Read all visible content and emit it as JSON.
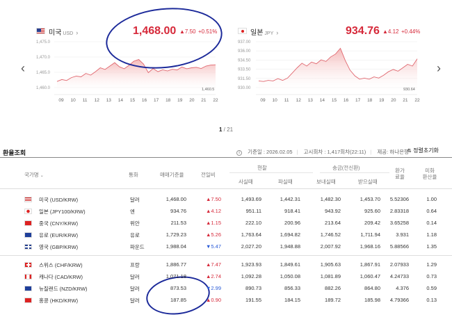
{
  "carousel": {
    "prev_icon": "chevron-left-icon",
    "next_icon": "chevron-right-icon",
    "page": "1",
    "total": "/ 21"
  },
  "usd": {
    "name": "미국",
    "code": "USD",
    "price": "1,468.00",
    "change": "▲7.50",
    "pct": "+0.51%",
    "y_ticks": [
      "1,475.0",
      "1,470.0",
      "1,465.0",
      "1,460.0"
    ],
    "last_label": "1,460.5",
    "x_ticks": [
      "09",
      "10",
      "11",
      "12",
      "13",
      "14",
      "15",
      "16",
      "17",
      "18",
      "19",
      "20",
      "21",
      "22"
    ],
    "chart_data": {
      "type": "area",
      "ylim": [
        1457,
        1478
      ],
      "values": [
        1461.2,
        1462.0,
        1461.6,
        1462.8,
        1463.4,
        1463.1,
        1464.5,
        1463.8,
        1465.2,
        1466.8,
        1466.1,
        1467.5,
        1468.9,
        1467.2,
        1466.4,
        1467.8,
        1469.5,
        1470.2,
        1468.3,
        1464.8,
        1466.5,
        1465.2,
        1466.0,
        1465.5,
        1466.2,
        1465.9,
        1467.1,
        1466.4,
        1466.8,
        1467.0,
        1466.5,
        1467.5,
        1467.9,
        1468.0
      ]
    }
  },
  "jpy": {
    "name": "일본",
    "code": "JPY",
    "price": "934.76",
    "change": "▲4.12",
    "pct": "+0.44%",
    "y_ticks": [
      "937.00",
      "936.00",
      "934.50",
      "933.50",
      "931.50",
      "930.00"
    ],
    "last_label": "930.64",
    "x_ticks": [
      "09",
      "10",
      "11",
      "12",
      "13",
      "14",
      "15",
      "16",
      "17",
      "18",
      "19",
      "20",
      "21",
      "22"
    ],
    "chart_data": {
      "type": "area",
      "ylim": [
        929,
        938
      ],
      "values": [
        930.9,
        930.8,
        931.0,
        930.9,
        931.3,
        931.0,
        931.4,
        932.3,
        933.2,
        934.0,
        933.5,
        934.2,
        933.9,
        934.6,
        934.3,
        935.1,
        935.6,
        936.6,
        934.5,
        932.8,
        931.8,
        931.2,
        931.4,
        931.2,
        931.6,
        931.4,
        931.9,
        932.5,
        932.9,
        932.6,
        933.2,
        933.8,
        933.5,
        934.76
      ]
    }
  },
  "table": {
    "title": "환율조회",
    "meta": {
      "date_label": "기준일 : 2026.02.05",
      "notice": "고시회차 : 1,417회차(22:11)",
      "provider": "제공: 하나은행"
    },
    "sort_label": "정렬초기화",
    "headers": {
      "country": "국가명",
      "unit": "통화",
      "base": "매매기준율",
      "change": "전일비",
      "cash": "현찰",
      "cash_buy": "사실때",
      "cash_sell": "파실때",
      "wire": "송금(전신환)",
      "wire_send": "보내실때",
      "wire_recv": "받으실때",
      "exchange": "환가\n료율",
      "usd_rate": "미화\n환산율"
    },
    "rows_top": [
      {
        "name": "미국 (USD/KRW)",
        "unit": "달러",
        "base": "1,468.00",
        "change": "▲7.50",
        "dir": "up",
        "cash_buy": "1,493.69",
        "cash_sell": "1,442.31",
        "send": "1,482.30",
        "recv": "1,453.70",
        "ex": "5.52306",
        "usd": "1.00",
        "flag": "us"
      },
      {
        "name": "일본 (JPY100/KRW)",
        "unit": "엔",
        "base": "934.76",
        "change": "▲4.12",
        "dir": "up",
        "cash_buy": "951.11",
        "cash_sell": "918.41",
        "send": "943.92",
        "recv": "925.60",
        "ex": "2.83318",
        "usd": "0.64",
        "flag": "jp"
      },
      {
        "name": "중국 (CNY/KRW)",
        "unit": "위안",
        "base": "211.53",
        "change": "▲1.15",
        "dir": "up",
        "cash_buy": "222.10",
        "cash_sell": "200.96",
        "send": "213.64",
        "recv": "209.42",
        "ex": "3.65258",
        "usd": "0.14",
        "flag": "cn"
      },
      {
        "name": "유로 (EUR/KRW)",
        "unit": "유로",
        "base": "1,729.23",
        "change": "▲5.26",
        "dir": "up",
        "cash_buy": "1,763.64",
        "cash_sell": "1,694.82",
        "send": "1,746.52",
        "recv": "1,711.94",
        "ex": "3.931",
        "usd": "1.18",
        "flag": "eu"
      },
      {
        "name": "영국 (GBP/KRW)",
        "unit": "파운드",
        "base": "1,988.04",
        "change": "▼5.47",
        "dir": "down",
        "cash_buy": "2,027.20",
        "cash_sell": "1,948.88",
        "send": "2,007.92",
        "recv": "1,968.16",
        "ex": "5.88566",
        "usd": "1.35",
        "flag": "gb"
      }
    ],
    "rows_bottom": [
      {
        "name": "스위스 (CHF/KRW)",
        "unit": "프랑",
        "base": "1,886.77",
        "change": "▲7.47",
        "dir": "up",
        "cash_buy": "1,923.93",
        "cash_sell": "1,849.61",
        "send": "1,905.63",
        "recv": "1,867.91",
        "ex": "2.07933",
        "usd": "1.29",
        "flag": "ch"
      },
      {
        "name": "캐나다 (CAD/KRW)",
        "unit": "달러",
        "base": "1,071.18",
        "change": "▲2.74",
        "dir": "up",
        "cash_buy": "1,092.28",
        "cash_sell": "1,050.08",
        "send": "1,081.89",
        "recv": "1,060.47",
        "ex": "4.24733",
        "usd": "0.73",
        "flag": "ca"
      },
      {
        "name": "뉴질랜드 (NZD/KRW)",
        "unit": "달러",
        "base": "873.53",
        "change": "▼2.99",
        "dir": "down",
        "cash_buy": "890.73",
        "cash_sell": "856.33",
        "send": "882.26",
        "recv": "864.80",
        "ex": "4.376",
        "usd": "0.59",
        "flag": "nz"
      },
      {
        "name": "홍콩 (HKD/KRW)",
        "unit": "달러",
        "base": "187.85",
        "change": "▲0.90",
        "dir": "up",
        "cash_buy": "191.55",
        "cash_sell": "184.15",
        "send": "189.72",
        "recv": "185.98",
        "ex": "4.79366",
        "usd": "0.13",
        "flag": "hk"
      }
    ]
  },
  "colors": {
    "up": "#d6293a",
    "down": "#2a5bd7",
    "annotation": "#1c2a9a",
    "area": "#f6c9c9"
  }
}
